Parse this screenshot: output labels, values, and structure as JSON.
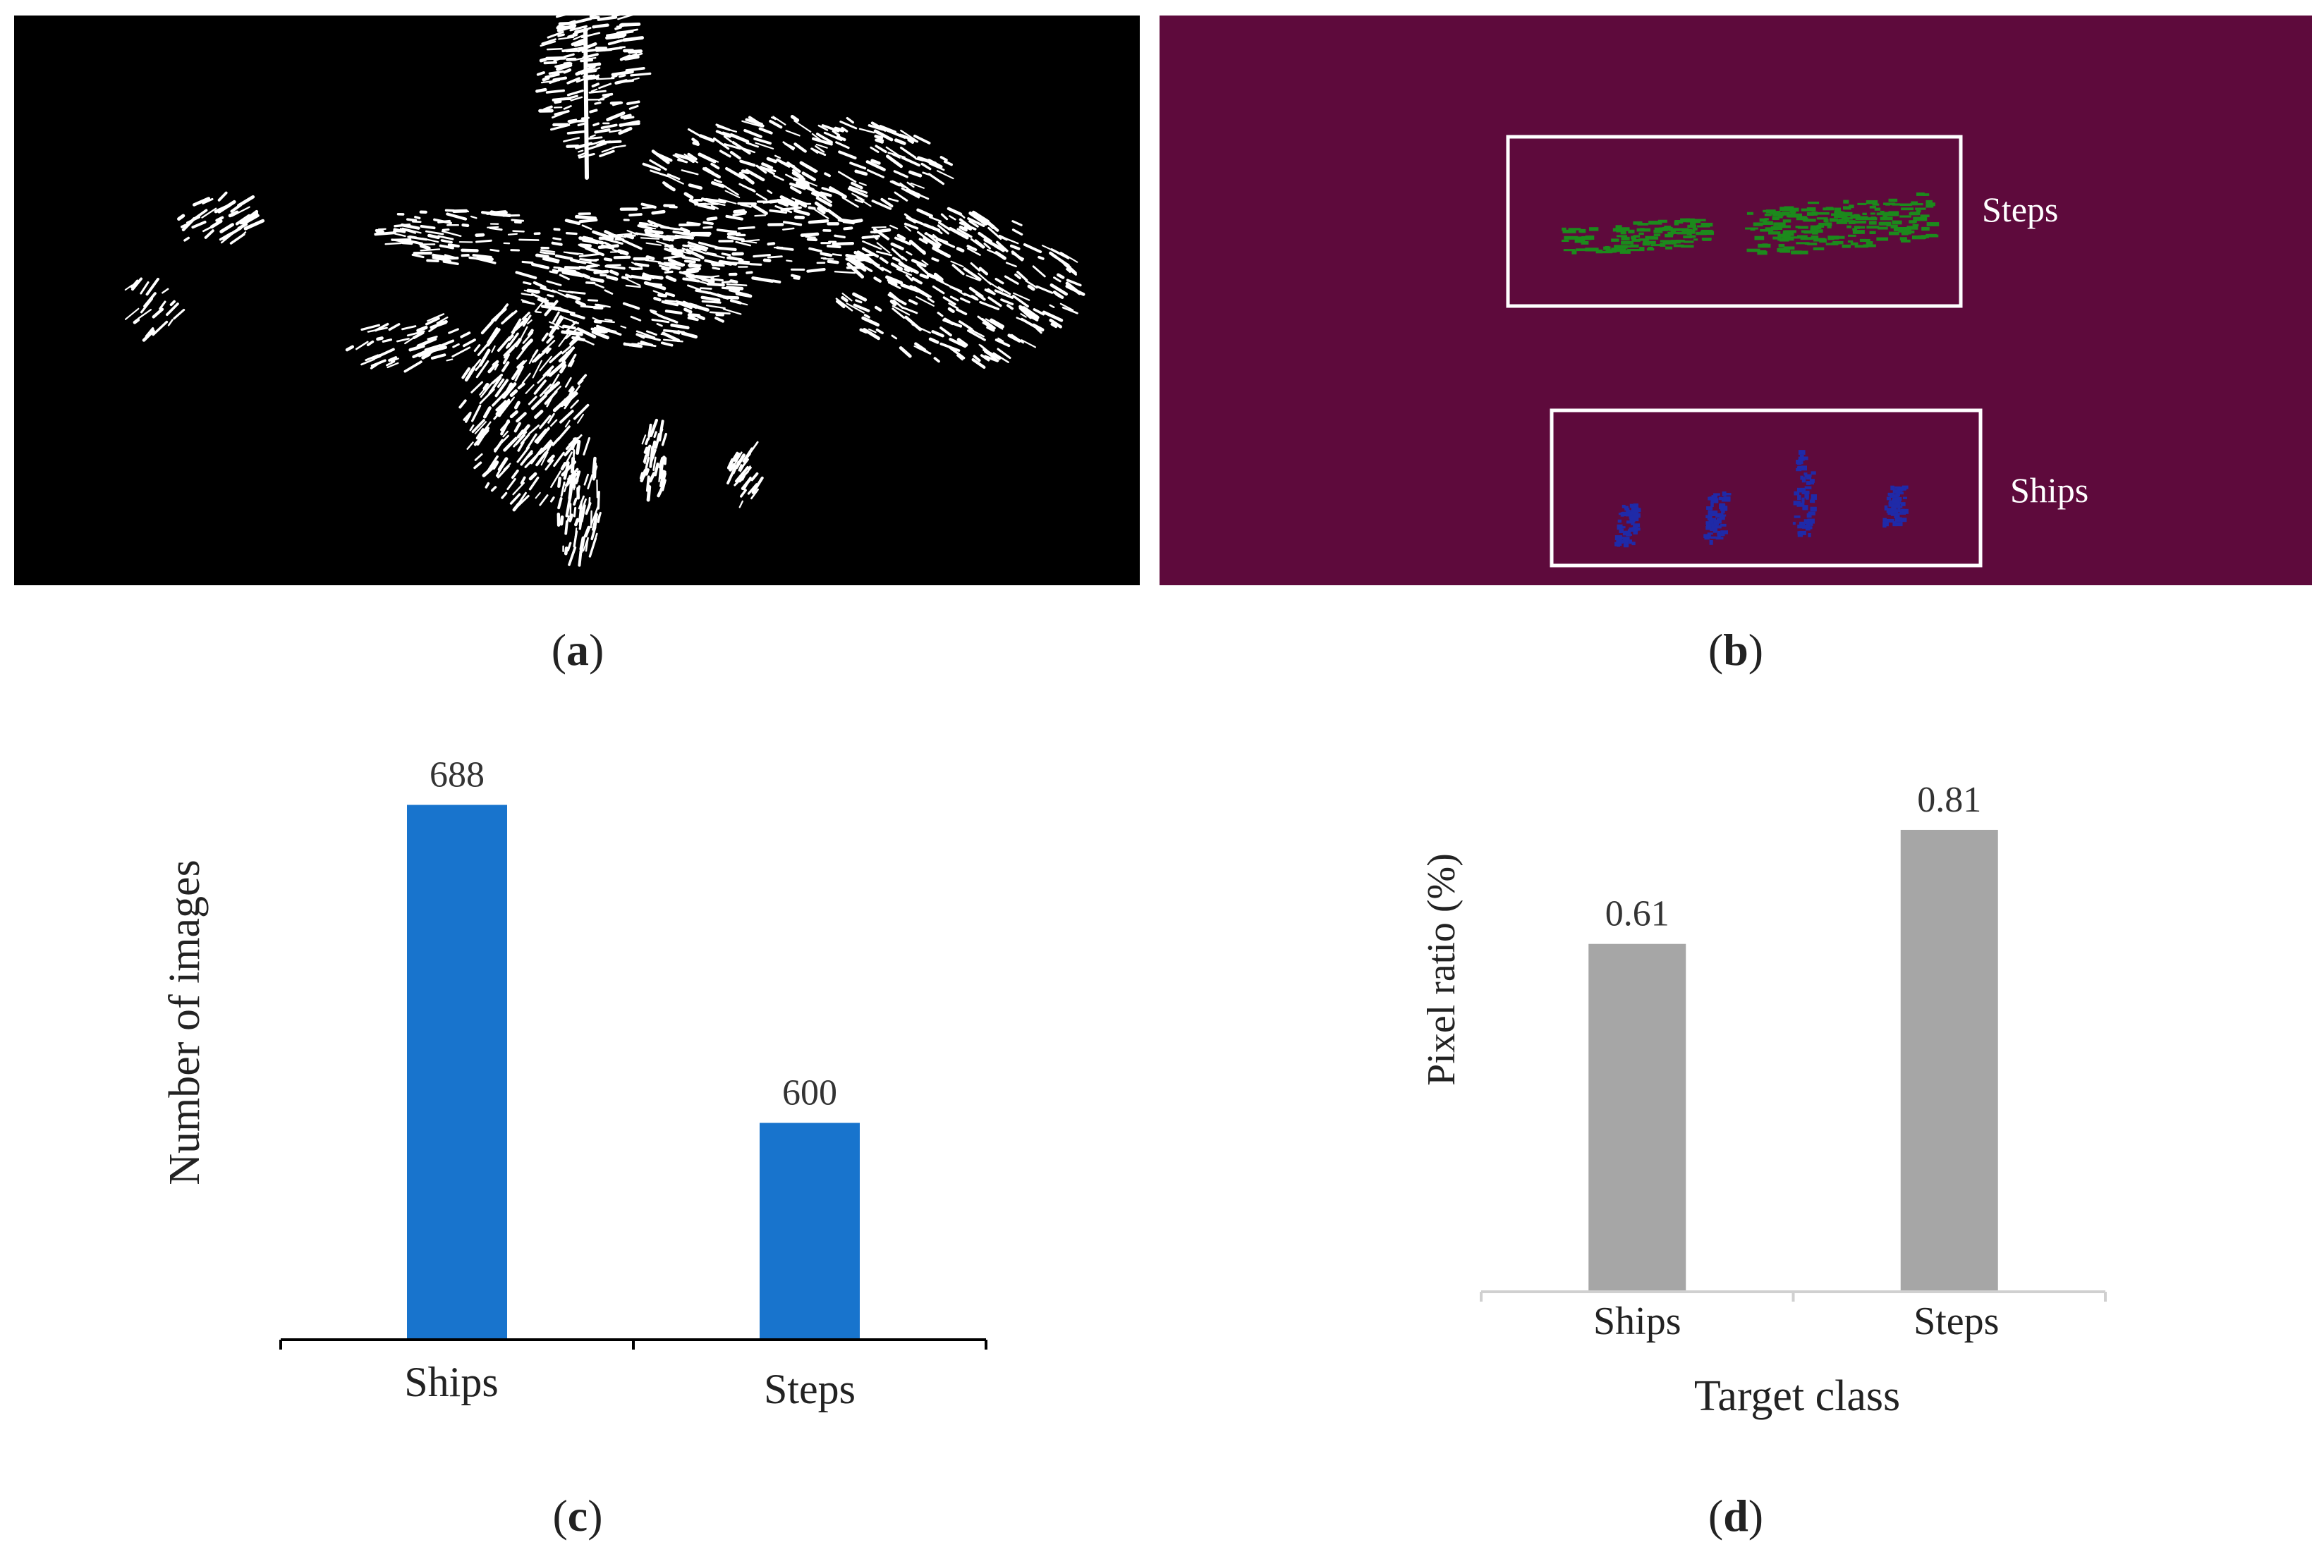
{
  "captions": {
    "a": "a",
    "b": "b",
    "c": "c",
    "d": "d"
  },
  "panel_b": {
    "background": "#5e0a3c",
    "steps_label": "Steps",
    "ships_label": "Ships",
    "steps_color": "#1c8a1c",
    "ships_color": "#1f2aa8"
  },
  "chart_data": [
    {
      "type": "bar",
      "categories": [
        "Ships",
        "Steps"
      ],
      "values": [
        688,
        600
      ],
      "data_labels": [
        "688",
        "600"
      ],
      "title": "",
      "xlabel": "",
      "ylabel": "Number of images",
      "ylim": [
        540,
        700
      ],
      "bar_color": "#1874cd",
      "grid": false,
      "legend": "none"
    },
    {
      "type": "bar",
      "categories": [
        "Ships",
        "Steps"
      ],
      "values": [
        0.61,
        0.81
      ],
      "data_labels": [
        "0.61",
        "0.81"
      ],
      "title": "",
      "xlabel": "Target class",
      "ylabel": "Pixel ratio (%)",
      "ylim": [
        0,
        1.15
      ],
      "bar_color": "#a6a6a6",
      "grid": false,
      "legend": "none"
    }
  ]
}
